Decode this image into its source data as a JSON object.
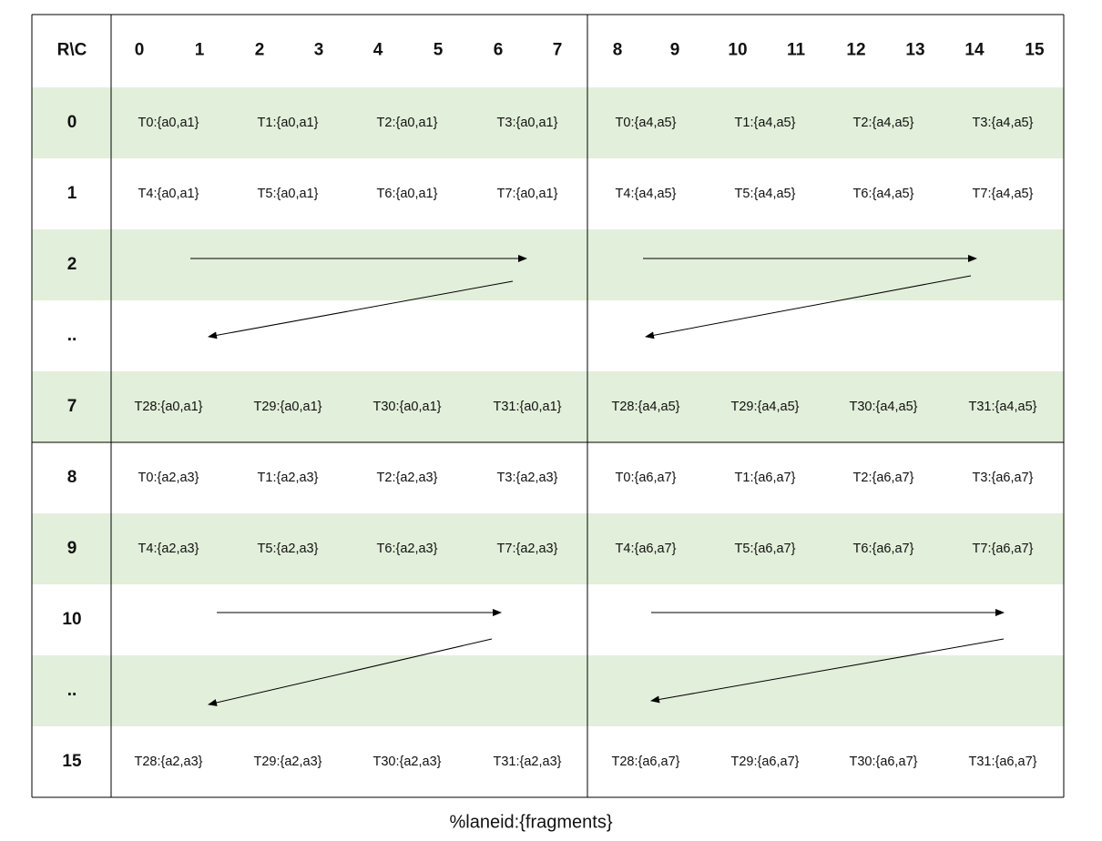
{
  "header": {
    "corner": "R\\C",
    "columns": [
      "0",
      "1",
      "2",
      "3",
      "4",
      "5",
      "6",
      "7",
      "8",
      "9",
      "10",
      "11",
      "12",
      "13",
      "14",
      "15"
    ]
  },
  "rows": [
    {
      "label": "0",
      "cells": [
        "T0:{a0,a1}",
        "T1:{a0,a1}",
        "T2:{a0,a1}",
        "T3:{a0,a1}",
        "T0:{a4,a5}",
        "T1:{a4,a5}",
        "T2:{a4,a5}",
        "T3:{a4,a5}"
      ]
    },
    {
      "label": "1",
      "cells": [
        "T4:{a0,a1}",
        "T5:{a0,a1}",
        "T6:{a0,a1}",
        "T7:{a0,a1}",
        "T4:{a4,a5}",
        "T5:{a4,a5}",
        "T6:{a4,a5}",
        "T7:{a4,a5}"
      ]
    },
    {
      "label": "2",
      "cells": []
    },
    {
      "label": "..",
      "cells": []
    },
    {
      "label": "7",
      "cells": [
        "T28:{a0,a1}",
        "T29:{a0,a1}",
        "T30:{a0,a1}",
        "T31:{a0,a1}",
        "T28:{a4,a5}",
        "T29:{a4,a5}",
        "T30:{a4,a5}",
        "T31:{a4,a5}"
      ]
    },
    {
      "label": "8",
      "cells": [
        "T0:{a2,a3}",
        "T1:{a2,a3}",
        "T2:{a2,a3}",
        "T3:{a2,a3}",
        "T0:{a6,a7}",
        "T1:{a6,a7}",
        "T2:{a6,a7}",
        "T3:{a6,a7}"
      ]
    },
    {
      "label": "9",
      "cells": [
        "T4:{a2,a3}",
        "T5:{a2,a3}",
        "T6:{a2,a3}",
        "T7:{a2,a3}",
        "T4:{a6,a7}",
        "T5:{a6,a7}",
        "T6:{a6,a7}",
        "T7:{a6,a7}"
      ]
    },
    {
      "label": "10",
      "cells": []
    },
    {
      "label": "..",
      "cells": []
    },
    {
      "label": "15",
      "cells": [
        "T28:{a2,a3}",
        "T29:{a2,a3}",
        "T30:{a2,a3}",
        "T31:{a2,a3}",
        "T28:{a6,a7}",
        "T29:{a6,a7}",
        "T30:{a6,a7}",
        "T31:{a6,a7}"
      ]
    }
  ],
  "caption": "%laneid:{fragments}",
  "colors": {
    "band": "#e2efda",
    "line": "#000000"
  }
}
